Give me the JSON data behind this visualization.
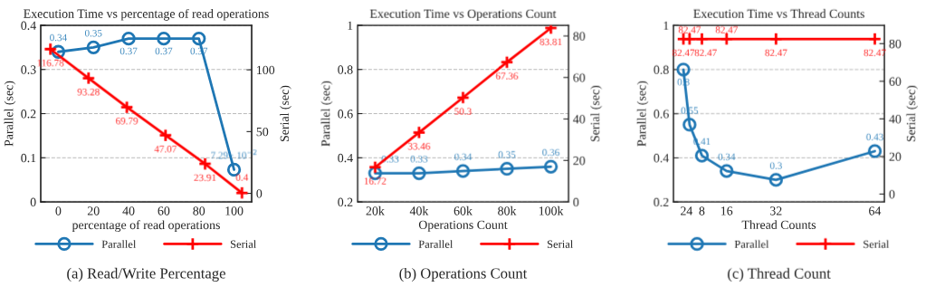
{
  "chart_data": [
    {
      "type": "line",
      "title": "Execution Time vs percentage of read operations",
      "xlabel": "percentage of read operations",
      "ylabel": "Parallel (sec)",
      "y2label": "Serial (sec)",
      "xlim": [
        -10,
        110
      ],
      "xticks": [
        0,
        20,
        40,
        60,
        80,
        100
      ],
      "ylim": [
        0,
        0.4
      ],
      "yticks": [
        0,
        0.1,
        0.2,
        0.3,
        0.4
      ],
      "y2lim": [
        -6.9,
        136
      ],
      "y2ticks": [
        0,
        50,
        100
      ],
      "grid": "y",
      "legend": "bottom",
      "annotations": [
        "(a) Read/Write Percentage"
      ],
      "series": [
        {
          "name": "Parallel",
          "color": "#1f77b4",
          "marker": "circle",
          "x": [
            0,
            20,
            40,
            60,
            80,
            100
          ],
          "values": [
            0.34,
            0.35,
            0.37,
            0.37,
            0.37,
            0.0729
          ],
          "value_labels": [
            "0.34",
            "0.35",
            "0.37",
            "0.37",
            "0.37",
            "7.29 · 10$^{−2}$"
          ]
        },
        {
          "name": "Serial",
          "color": "#ff0000",
          "marker": "cross",
          "axis": "y2",
          "x": [
            -4.5,
            17.2,
            39,
            61,
            83.5,
            104.5
          ],
          "values": [
            116.78,
            93.28,
            69.79,
            47.07,
            23.91,
            0.4
          ],
          "value_labels": [
            "116.78",
            "93.28",
            "69.79",
            "47.07",
            "23.91",
            "0.4"
          ]
        }
      ]
    },
    {
      "type": "line",
      "title": "Execution Time vs Operations Count",
      "xlabel": "Operations Count",
      "ylabel": "Parallel (sec)",
      "y2label": "Serial (sec)",
      "categories": [
        "20k",
        "40k",
        "60k",
        "80k",
        "100k"
      ],
      "ylim": [
        0.2,
        1
      ],
      "yticks": [
        0.2,
        0.4,
        0.6,
        0.8,
        1
      ],
      "y2lim": [
        0,
        85.1
      ],
      "y2ticks": [
        0,
        20,
        40,
        60,
        80
      ],
      "grid": "y",
      "legend": "bottom",
      "data_labels": true,
      "annotations": [
        "(b) Operations Count"
      ],
      "series": [
        {
          "name": "Parallel",
          "color": "#1f77b4",
          "marker": "circle",
          "values": [
            0.33,
            0.33,
            0.34,
            0.35,
            0.36
          ]
        },
        {
          "name": "Serial",
          "color": "#ff0000",
          "marker": "cross",
          "axis": "y2",
          "values": [
            16.72,
            33.46,
            50.3,
            67.36,
            83.81
          ]
        }
      ]
    },
    {
      "type": "line",
      "title": "Execution Time vs Thread Counts",
      "xlabel": "Thread Counts",
      "ylabel": "Parallel (sec)",
      "y2label": "Serial (sec)",
      "xlim": [
        -1.2,
        67.1
      ],
      "xticks": [
        2,
        4,
        8,
        16,
        32,
        64
      ],
      "ylim": [
        0.2,
        1
      ],
      "yticks": [
        0.2,
        0.4,
        0.6,
        0.8,
        1
      ],
      "y2lim": [
        -4.2,
        89.7
      ],
      "y2ticks": [
        0,
        20,
        40,
        60,
        80
      ],
      "grid": "y",
      "legend": "bottom",
      "data_labels": true,
      "annotations": [
        "(c) Thread Count"
      ],
      "series": [
        {
          "name": "Parallel",
          "color": "#1f77b4",
          "marker": "circle",
          "x": [
            2,
            4,
            8,
            16,
            32,
            64
          ],
          "values": [
            0.8,
            0.55,
            0.41,
            0.34,
            0.3,
            0.43
          ]
        },
        {
          "name": "Serial",
          "color": "#ff0000",
          "marker": "cross",
          "axis": "y2",
          "x": [
            2,
            4,
            8,
            16,
            32,
            64
          ],
          "values": [
            82.47,
            82.47,
            82.47,
            82.47,
            82.47,
            82.47
          ]
        }
      ]
    }
  ]
}
